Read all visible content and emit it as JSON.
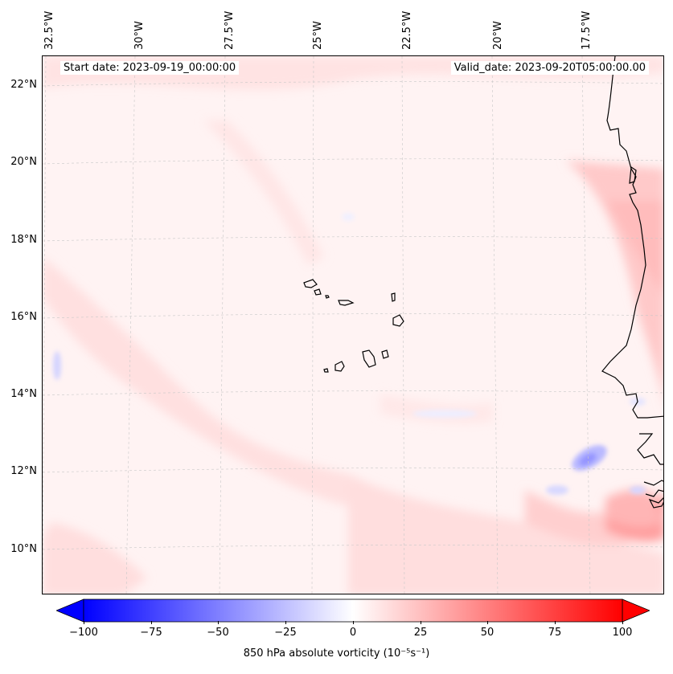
{
  "header": {
    "start_date": "Start date: 2023-09-19_00:00:00",
    "valid_date": "Valid_date: 2023-09-20T05:00:00.00"
  },
  "map": {
    "longitude_labels": [
      "32.5°W",
      "30°W",
      "27.5°W",
      "25°W",
      "22.5°W",
      "20°W",
      "17.5°W"
    ],
    "latitude_labels": [
      "22°N",
      "20°N",
      "18°N",
      "16°N",
      "14°N",
      "12°N",
      "10°N"
    ],
    "gridlines": true,
    "colors": {
      "positive": "#ff0000",
      "negative": "#0000ff",
      "coast": "#000000"
    }
  },
  "colorbar": {
    "ticks": [
      "−100",
      "−75",
      "−50",
      "−25",
      "0",
      "25",
      "50",
      "75",
      "100"
    ],
    "range": [
      -100,
      100
    ],
    "colormap": "bwr",
    "extend": "both",
    "label": "850 hPa absolute vorticity (10⁻⁵s⁻¹)"
  }
}
